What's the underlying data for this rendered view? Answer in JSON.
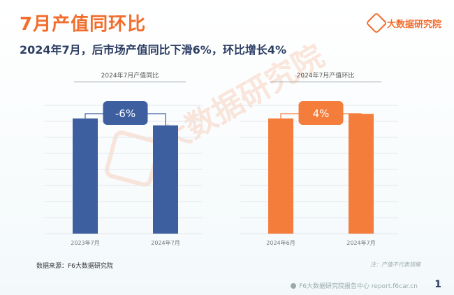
{
  "header": {
    "title": "7月产值同环比",
    "subtitle": "2024年7月，后市场产值同比下滑6%，环比增长4%"
  },
  "brand": {
    "name": "大数据研究院",
    "icon": "f6-logo-icon"
  },
  "watermark": {
    "text": "大数据研究院"
  },
  "footer": {
    "source": "数据来源：F6大数据研究院",
    "note": "注：产值不代表规模",
    "website": "F6大数据研究院报告中心 report.f6car.cn",
    "page": "1"
  },
  "chart_data": [
    {
      "type": "bar",
      "title": "2024年7月产值同比",
      "categories": [
        "2023年7月",
        "2024年7月"
      ],
      "values": [
        100,
        94
      ],
      "change_label": "-6%",
      "color": "#3d5f9f",
      "ylim": [
        0,
        112
      ],
      "grid": true
    },
    {
      "type": "bar",
      "title": "2024年7月产值环比",
      "categories": [
        "2024年6月",
        "2024年7月"
      ],
      "values": [
        100,
        104
      ],
      "change_label": "4%",
      "color": "#f47d3c",
      "ylim": [
        0,
        112
      ],
      "grid": true
    }
  ]
}
